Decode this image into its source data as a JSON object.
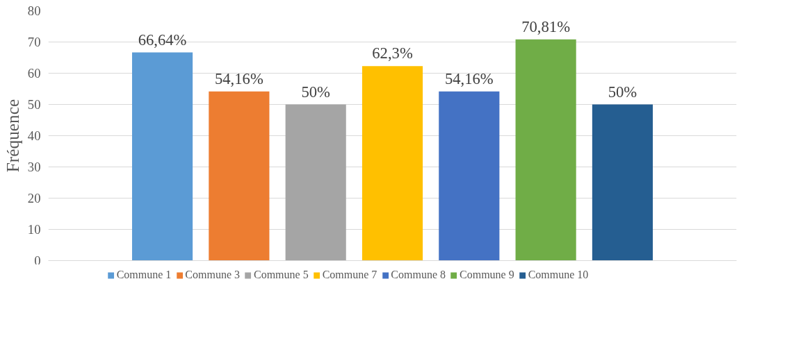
{
  "chart_data": {
    "type": "bar",
    "ylabel": "Fréquence",
    "categories": [
      null
    ],
    "series": [
      {
        "name": "Commune 1",
        "color": "#5b9bd5",
        "values": [
          66.64
        ],
        "value_labels": [
          "66,64%"
        ]
      },
      {
        "name": "Commune 3",
        "color": "#ed7d31",
        "values": [
          54.16
        ],
        "value_labels": [
          "54,16%"
        ]
      },
      {
        "name": "Commune 5",
        "color": "#a5a5a5",
        "values": [
          50
        ],
        "value_labels": [
          "50%"
        ]
      },
      {
        "name": "Commune 7",
        "color": "#ffc000",
        "values": [
          62.3
        ],
        "value_labels": [
          "62,3%"
        ]
      },
      {
        "name": "Commune 8",
        "color": "#4472c4",
        "values": [
          54.16
        ],
        "value_labels": [
          "54,16%"
        ]
      },
      {
        "name": "Commune 9",
        "color": "#70ad47",
        "values": [
          70.81
        ],
        "value_labels": [
          "70,81%"
        ]
      },
      {
        "name": "Commune 10",
        "color": "#255e91",
        "values": [
          50
        ],
        "value_labels": [
          "50%"
        ]
      }
    ],
    "ylim": [
      0,
      80
    ],
    "yticks": [
      0,
      10,
      20,
      30,
      40,
      50,
      60,
      70,
      80
    ],
    "grid": "y",
    "legend": "bottom"
  }
}
